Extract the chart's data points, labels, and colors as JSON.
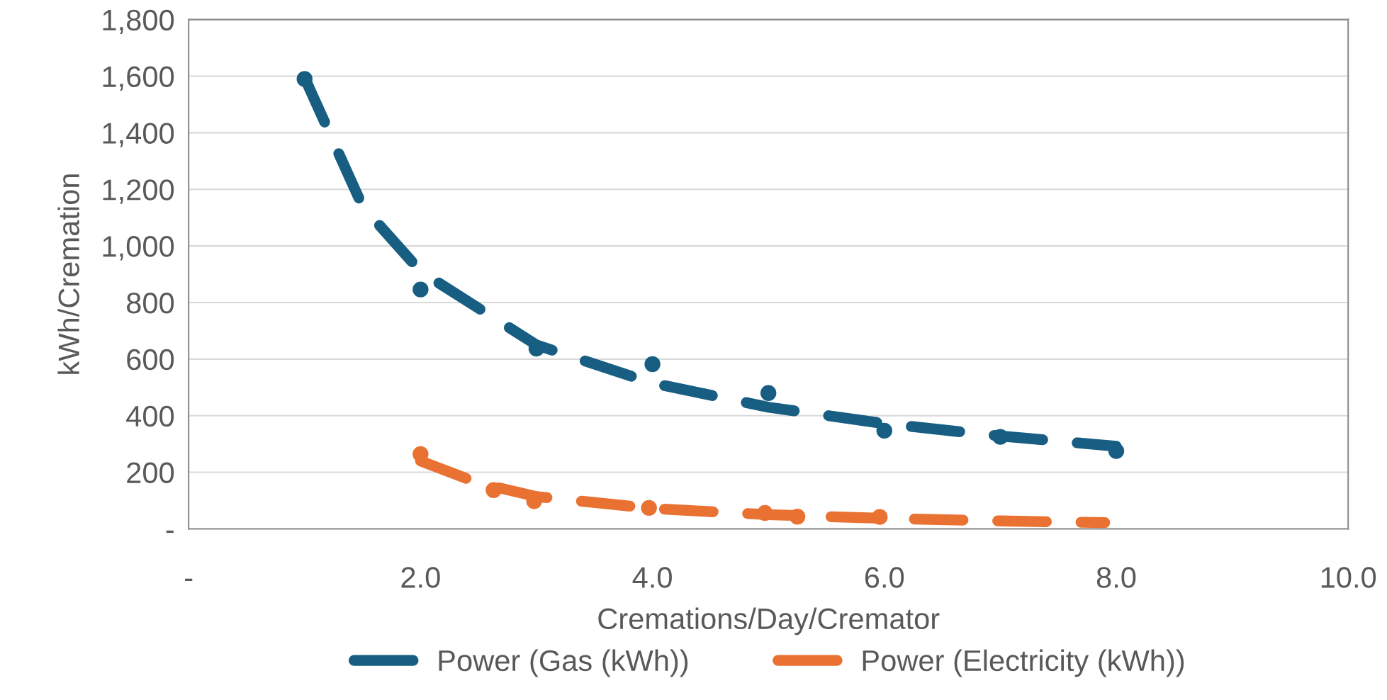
{
  "chart_data": {
    "type": "scatter",
    "xlabel": "Cremations/Day/Cremator",
    "ylabel": "kWh/Cremation",
    "xlim": [
      0,
      10
    ],
    "xticks": [
      {
        "value": 0,
        "label": "-"
      },
      {
        "value": 2,
        "label": "2.0"
      },
      {
        "value": 4,
        "label": "4.0"
      },
      {
        "value": 6,
        "label": "6.0"
      },
      {
        "value": 8,
        "label": "8.0"
      },
      {
        "value": 10,
        "label": "10.0"
      }
    ],
    "ylim": [
      0,
      1800
    ],
    "yticks": [
      {
        "value": 0,
        "label": "-"
      },
      200,
      400,
      600,
      800,
      {
        "value": 1000,
        "label": "1,000"
      },
      {
        "value": 1200,
        "label": "1,200"
      },
      {
        "value": 1400,
        "label": "1,400"
      },
      {
        "value": 1600,
        "label": "1,600"
      },
      {
        "value": 1800,
        "label": "1,800"
      }
    ],
    "grid": "y",
    "legend": "bottom",
    "series": [
      {
        "marker": "circle",
        "color": "#175e82",
        "x": [
          1,
          2,
          3,
          4,
          5,
          6,
          7,
          8
        ],
        "values": [
          1590,
          846,
          637,
          582,
          480,
          347,
          325,
          275
        ]
      },
      {
        "marker": "circle",
        "color": "#e97132",
        "x": [
          2,
          2.63,
          2.98,
          3.97,
          4.97,
          5.25,
          5.96
        ],
        "values": [
          264,
          137,
          98,
          74,
          56,
          43,
          42
        ]
      },
      {
        "type": "line",
        "name": "Power (Gas (kWh))",
        "line_style": "dashed",
        "color": "#175e82",
        "x": [
          1,
          1.5,
          2,
          3,
          4,
          5,
          6,
          7,
          8
        ],
        "values": [
          1595,
          1140,
          910,
          650,
          515,
          430,
          372,
          328,
          292
        ]
      },
      {
        "type": "line",
        "name": "Power (Electricity (kWh))",
        "line_style": "dashed",
        "color": "#e97132",
        "x": [
          2,
          2.5,
          3,
          4,
          5,
          6,
          7,
          7.9
        ],
        "values": [
          240,
          162,
          114,
          72,
          50,
          37,
          28,
          22
        ]
      }
    ]
  }
}
